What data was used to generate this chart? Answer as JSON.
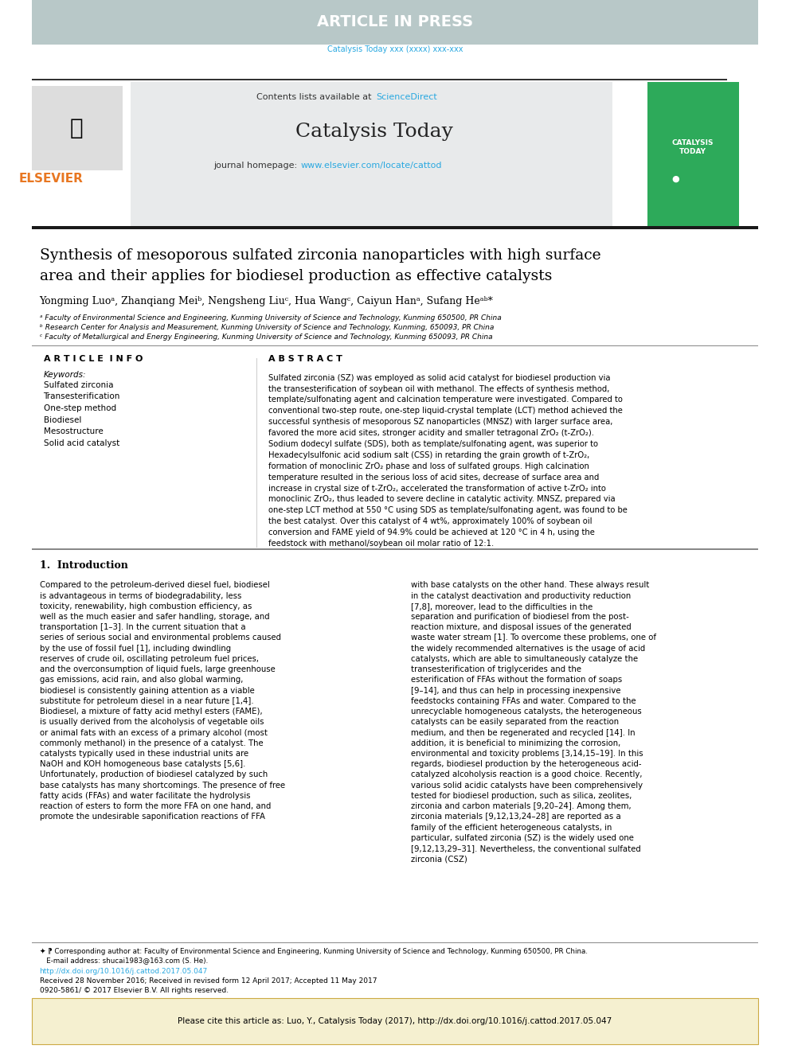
{
  "article_in_press_bg": "#b8c8c8",
  "article_in_press_text": "ARTICLE IN PRESS",
  "journal_ref": "Catalysis Today xxx (xxxx) xxx-xxx",
  "journal_ref_color": "#29a8e0",
  "contents_available": "Contents lists available at ",
  "sciencedirect": "ScienceDirect",
  "sciencedirect_color": "#29a8e0",
  "journal_name": "Catalysis Today",
  "journal_homepage_prefix": "journal homepage: ",
  "journal_homepage_url": "www.elsevier.com/locate/cattod",
  "journal_homepage_color": "#29a8e0",
  "elsevier_color": "#e87722",
  "header_bg": "#e8eaeb",
  "paper_title_line1": "Synthesis of mesoporous sulfated zirconia nanoparticles with high surface",
  "paper_title_line2": "area and their applies for biodiesel production as effective catalysts",
  "authors": "Yongming Luoᵃ, Zhanqiang Meiᵇ, Nengsheng Liuᶜ, Hua Wangᶜ, Caiyun Hanᵃ, Sufang Heᵃᵇ*",
  "affil_a": "ᵃ Faculty of Environmental Science and Engineering, Kunming University of Science and Technology, Kunming 650500, PR China",
  "affil_b": "ᵇ Research Center for Analysis and Measurement, Kunming University of Science and Technology, Kunming, 650093, PR China",
  "affil_c": "ᶜ Faculty of Metallurgical and Energy Engineering, Kunming University of Science and Technology, Kunming 650093, PR China",
  "article_info_title": "A R T I C L E  I N F O",
  "abstract_title": "A B S T R A C T",
  "keywords_label": "Keywords:",
  "keywords": [
    "Sulfated zirconia",
    "Transesterification",
    "One-step method",
    "Biodiesel",
    "Mesostructure",
    "Solid acid catalyst"
  ],
  "abstract_text": "Sulfated zirconia (SZ) was employed as solid acid catalyst for biodiesel production via the transesterification of soybean oil with methanol. The effects of synthesis method, template/sulfonating agent and calcination temperature were investigated. Compared to conventional two-step route, one-step liquid-crystal template (LCT) method achieved the successful synthesis of mesoporous SZ nanoparticles (MNSZ) with larger surface area, favored the more acid sites, stronger acidity and smaller tetragonal ZrO₂ (t-ZrO₂). Sodium dodecyl sulfate (SDS), both as template/sulfonating agent, was superior to Hexadecylsulfonic acid sodium salt (CSS) in retarding the grain growth of t-ZrO₂, formation of monoclinic ZrO₂ phase and loss of sulfated groups. High calcination temperature resulted in the serious loss of acid sites, decrease of surface area and increase in crystal size of t-ZrO₂, accelerated the transformation of active t-ZrO₂ into monoclinic ZrO₂, thus leaded to severe decline in catalytic activity. MNSZ, prepared via one-step LCT method at 550 °C using SDS as template/sulfonating agent, was found to be the best catalyst. Over this catalyst of 4 wt%, approximately 100% of soybean oil conversion and FAME yield of 94.9% could be achieved at 120 °C in 4 h, using the feedstock with methanol/soybean oil molar ratio of 12:1.",
  "intro_title": "1.  Introduction",
  "intro_col1": "Compared to the petroleum-derived diesel fuel, biodiesel is advantageous in terms of biodegradability, less toxicity, renewability, high combustion efficiency, as well as the much easier and safer handling, storage, and transportation [1–3]. In the current situation that a series of serious social and environmental problems caused by the use of fossil fuel [1], including dwindling reserves of crude oil, oscillating petroleum fuel prices, and the overconsumption of liquid fuels, large greenhouse gas emissions, acid rain, and also global warming, biodiesel is consistently gaining attention as a viable substitute for petroleum diesel in a near future [1,4].\n\n    Biodiesel, a mixture of fatty acid methyl esters (FAME), is usually derived from the alcoholysis of vegetable oils or animal fats with an excess of a primary alcohol (most commonly methanol) in the presence of a catalyst. The catalysts typically used in these industrial units are NaOH and KOH homogeneous base catalysts [5,6]. Unfortunately, production of biodiesel catalyzed by such base catalysts has many shortcomings. The presence of free fatty acids (FFAs) and water facilitate the hydrolysis reaction of esters to form the more FFA on one hand, and promote the undesirable saponification reactions of FFA",
  "intro_col2": "with base catalysts on the other hand. These always result in the catalyst deactivation and productivity reduction [7,8], moreover, lead to the difficulties in the separation and purification of biodiesel from the post-reaction mixture, and disposal issues of the generated waste water stream [1]. To overcome these problems, one of the widely recommended alternatives is the usage of acid catalysts, which are able to simultaneously catalyze the transesterification of triglycerides and the esterification of FFAs without the formation of soaps [9–14], and thus can help in processing inexpensive feedstocks containing FFAs and water. Compared to the unrecyclable homogeneous catalysts, the heterogeneous catalysts can be easily separated from the reaction medium, and then be regenerated and recycled [14]. In addition, it is beneficial to minimizing the corrosion, environmental and toxicity problems [3,14,15–19]. In this regards, biodiesel production by the heterogeneous acid-catalyzed alcoholysis reaction is a good choice. Recently, various solid acidic catalysts have been comprehensively tested for biodiesel production, such as silica, zeolites, zirconia and carbon materials [9,20–24]. Among them, zirconia materials [9,12,13,24–28] are reported as a family of the efficient heterogeneous catalysts, in particular, sulfated zirconia (SZ) is the widely used one [9,12,13,29–31]. Nevertheless, the conventional sulfated zirconia (CSZ)",
  "footnote_corresponding": "⁋ Corresponding author at: Faculty of Environmental Science and Engineering, Kunming University of Science and Technology, Kunming 650500, PR China.",
  "footnote_email": "E-mail address: shucai1983@163.com (S. He).",
  "footnote_email_link": "shucai1983@163.com",
  "footnote_doi": "http://dx.doi.org/10.1016/j.cattod.2017.05.047",
  "footnote_doi_color": "#29a8e0",
  "footnote_received": "Received 28 November 2016; Received in revised form 12 April 2017; Accepted 11 May 2017",
  "footnote_issn": "0920-5861/ © 2017 Elsevier B.V. All rights reserved.",
  "cite_box_text": "Please cite this article as: Luo, Y., Catalysis Today (2017), http://dx.doi.org/10.1016/j.cattod.2017.05.047",
  "cite_box_bg": "#f5f0d0",
  "page_bg": "#ffffff",
  "text_color": "#000000",
  "top_bar_height": 0.055,
  "figsize": [
    9.92,
    13.23
  ]
}
